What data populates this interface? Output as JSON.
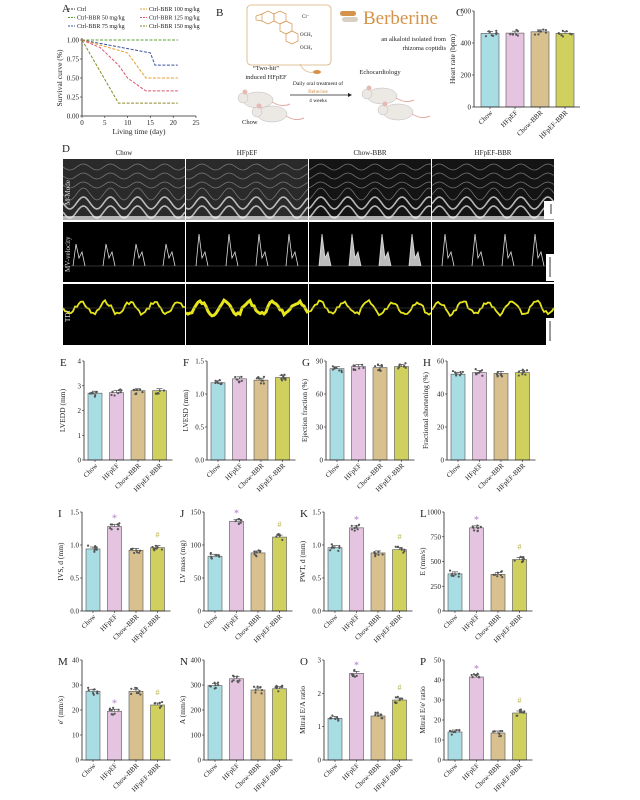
{
  "colors": {
    "groups": [
      "#a9dde4",
      "#e5c4e1",
      "#d8c08f",
      "#cfd05e"
    ],
    "star": "#b07cc6",
    "hash": "#b7b24c",
    "berberine": "#d4934a"
  },
  "panel_b": {
    "label": "B",
    "title": "Berberine",
    "chloride": "Cl⁻",
    "och3_1": "OCH₃",
    "och3_2": "OCH₃",
    "subtitle_1": "an alkaloid isolated from",
    "subtitle_2": "rhizoma coptidis",
    "two_hit": "“Two-hit”",
    "induced": "induced HFpEF",
    "treatment_1": "Daily oral treatment of",
    "treatment_2": "Beberine",
    "treatment_3": "4 weeks",
    "echo": "Echocardiology",
    "chow": "Chow"
  },
  "panel_d": {
    "label": "D",
    "columns": [
      "Chow",
      "HFpEF",
      "Chow-BBR",
      "HFpEF-BBR"
    ],
    "rows": [
      "M-Mode",
      "MV-velocity",
      "TDI"
    ]
  },
  "chart_data": [
    {
      "id": "A",
      "type": "line",
      "xlabel": "Living time (day)",
      "ylabel": "Survival curve (%)",
      "xlim": [
        0,
        25
      ],
      "ylim": [
        0,
        1
      ],
      "xticks": [
        "0",
        "5",
        "10",
        "15",
        "20",
        "25"
      ],
      "yticks": [
        "0.00",
        "0.25",
        "0.50",
        "0.75",
        "1.00"
      ],
      "legend_position": "top",
      "series": [
        {
          "name": "Ctrl",
          "color": "#333333",
          "points": [
            [
              0,
              1
            ],
            [
              21,
              1
            ]
          ]
        },
        {
          "name": "Ctrl-BBR 50 mg/kg",
          "color": "#5aa02c",
          "points": [
            [
              0,
              1
            ],
            [
              21,
              1
            ]
          ]
        },
        {
          "name": "Ctrl-BBR 75 mg/kg",
          "color": "#3a4fa0",
          "points": [
            [
              0,
              1
            ],
            [
              15,
              0.83
            ],
            [
              16,
              0.67
            ],
            [
              21,
              0.67
            ]
          ]
        },
        {
          "name": "Ctrl-BBR 100 mg/kg",
          "color": "#e8a030",
          "points": [
            [
              0,
              1
            ],
            [
              10,
              0.83
            ],
            [
              14,
              0.5
            ],
            [
              21,
              0.5
            ]
          ]
        },
        {
          "name": "Ctrl-BBR 125 mg/kg",
          "color": "#d9546a",
          "points": [
            [
              0,
              1
            ],
            [
              4,
              0.9
            ],
            [
              8,
              0.67
            ],
            [
              10,
              0.5
            ],
            [
              14,
              0.33
            ],
            [
              21,
              0.33
            ]
          ]
        },
        {
          "name": "Ctrl-BBR 150 mg/kg",
          "color": "#8a8a2a",
          "points": [
            [
              0,
              1
            ],
            [
              8,
              0.17
            ],
            [
              21,
              0.17
            ]
          ]
        }
      ]
    },
    {
      "id": "C",
      "type": "bar",
      "categories": [
        "Chow",
        "HFpEF",
        "Chow-BBR",
        "HFpEF-BBR"
      ],
      "values": [
        460,
        462,
        470,
        460
      ],
      "ylabel": "Heart rate (bpm)",
      "ylim": [
        0,
        600
      ],
      "yticks": [
        "0",
        "200",
        "400",
        "600"
      ],
      "markers": [
        "",
        "",
        "",
        ""
      ]
    },
    {
      "id": "E",
      "type": "bar",
      "categories": [
        "Chow",
        "HFpEF",
        "Chow-BBR",
        "HFpEF-BBR"
      ],
      "values": [
        2.7,
        2.72,
        2.8,
        2.8
      ],
      "ylabel": "LVEDD (mm)",
      "ylim": [
        0,
        4
      ],
      "yticks": [
        "0",
        "1",
        "2",
        "3",
        "4"
      ],
      "markers": [
        "",
        "",
        "",
        ""
      ]
    },
    {
      "id": "F",
      "type": "bar",
      "categories": [
        "Chow",
        "HFpEF",
        "Chow-BBR",
        "HFpEF-BBR"
      ],
      "values": [
        1.17,
        1.23,
        1.21,
        1.25
      ],
      "ylabel": "LVESD (mm)",
      "ylim": [
        0,
        1.5
      ],
      "yticks": [
        "0.0",
        "0.5",
        "1.0",
        "1.5"
      ],
      "markers": [
        "",
        "",
        "",
        ""
      ]
    },
    {
      "id": "G",
      "type": "bar",
      "categories": [
        "Chow",
        "HFpEF",
        "Chow-BBR",
        "HFpEF-BBR"
      ],
      "values": [
        83,
        85,
        84,
        85
      ],
      "ylabel": "Ejection fraction (%)",
      "ylim": [
        0,
        90
      ],
      "yticks": [
        "0",
        "30",
        "60",
        "90"
      ],
      "markers": [
        "",
        "",
        "",
        ""
      ]
    },
    {
      "id": "H",
      "type": "bar",
      "categories": [
        "Chow",
        "HFpEF",
        "Chow-BBR",
        "HFpEF-BBR"
      ],
      "values": [
        52,
        53,
        52.5,
        53
      ],
      "ylabel": "Fractional shortening (%)",
      "ylim": [
        0,
        60
      ],
      "yticks": [
        "0",
        "20",
        "40",
        "60"
      ],
      "markers": [
        "",
        "",
        "",
        ""
      ]
    },
    {
      "id": "I",
      "type": "bar",
      "categories": [
        "Chow",
        "HFpEF",
        "Chow-BBR",
        "HFpEF-BBR"
      ],
      "values": [
        0.94,
        1.28,
        0.92,
        0.96
      ],
      "ylabel": "IVS, d (mm)",
      "ylim": [
        0,
        1.5
      ],
      "yticks": [
        "0.0",
        "0.5",
        "1.0",
        "1.5"
      ],
      "markers": [
        "",
        "*",
        "",
        "#"
      ]
    },
    {
      "id": "J",
      "type": "bar",
      "categories": [
        "Chow",
        "HFpEF",
        "Chow-BBR",
        "HFpEF-BBR"
      ],
      "values": [
        83,
        136,
        88,
        112
      ],
      "ylabel": "LV mass (mg)",
      "ylim": [
        0,
        150
      ],
      "yticks": [
        "0",
        "50",
        "100",
        "150"
      ],
      "markers": [
        "",
        "*",
        "",
        "#"
      ]
    },
    {
      "id": "K",
      "type": "bar",
      "categories": [
        "Chow",
        "HFpEF",
        "Chow-BBR",
        "HFpEF-BBR"
      ],
      "values": [
        0.96,
        1.26,
        0.88,
        0.93
      ],
      "ylabel": "PWT, d (mm)",
      "ylim": [
        0,
        1.5
      ],
      "yticks": [
        "0.0",
        "0.5",
        "1.0",
        "1.5"
      ],
      "markers": [
        "",
        "*",
        "",
        "#"
      ]
    },
    {
      "id": "L",
      "type": "bar",
      "categories": [
        "Chow",
        "HFpEF",
        "Chow-BBR",
        "HFpEF-BBR"
      ],
      "values": [
        375,
        840,
        370,
        520
      ],
      "ylabel": "E (mm/s)",
      "ylim": [
        0,
        1000
      ],
      "yticks": [
        "0",
        "250",
        "500",
        "750",
        "1000"
      ],
      "markers": [
        "",
        "*",
        "",
        "#"
      ]
    },
    {
      "id": "M",
      "type": "bar",
      "categories": [
        "Chow",
        "HFpEF",
        "Chow-BBR",
        "HFpEF-BBR"
      ],
      "values": [
        27.5,
        19.5,
        27.5,
        22
      ],
      "ylabel": "e' (mm/s)",
      "ylim": [
        0,
        40
      ],
      "yticks": [
        "0",
        "10",
        "20",
        "30",
        "40"
      ],
      "markers": [
        "",
        "*",
        "",
        "#"
      ]
    },
    {
      "id": "N",
      "type": "bar",
      "categories": [
        "Chow",
        "HFpEF",
        "Chow-BBR",
        "HFpEF-BBR"
      ],
      "values": [
        298,
        325,
        280,
        285
      ],
      "ylabel": "A (mm/s)",
      "ylim": [
        0,
        400
      ],
      "yticks": [
        "0",
        "100",
        "200",
        "300",
        "400"
      ],
      "markers": [
        "",
        "",
        "",
        ""
      ]
    },
    {
      "id": "O",
      "type": "bar",
      "categories": [
        "Chow",
        "HFpEF",
        "Chow-BBR",
        "HFpEF-BBR"
      ],
      "values": [
        1.25,
        2.6,
        1.32,
        1.8
      ],
      "ylabel": "Mitral E/A ratio",
      "ylim": [
        0,
        3
      ],
      "yticks": [
        "0",
        "1",
        "2",
        "3"
      ],
      "markers": [
        "",
        "*",
        "",
        "#"
      ]
    },
    {
      "id": "P",
      "type": "bar",
      "categories": [
        "Chow",
        "HFpEF",
        "Chow-BBR",
        "HFpEF-BBR"
      ],
      "values": [
        14,
        41.5,
        13.5,
        23.5
      ],
      "ylabel": "Mitral E/e' ratio",
      "ylim": [
        0,
        50
      ],
      "yticks": [
        "0",
        "10",
        "20",
        "30",
        "40",
        "50"
      ],
      "markers": [
        "",
        "*",
        "",
        "#"
      ]
    }
  ]
}
